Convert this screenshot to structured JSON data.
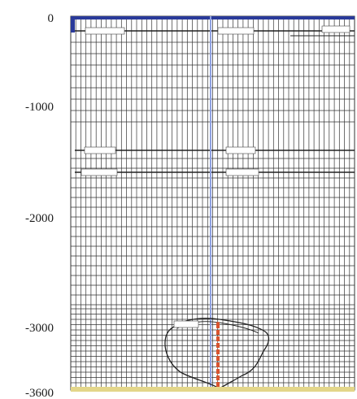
{
  "y_axis": {
    "unit_note": "",
    "ticks": [
      {
        "value": 0,
        "label": "0"
      },
      {
        "value": -1000,
        "label": "-1000"
      },
      {
        "value": -2000,
        "label": "-2000"
      },
      {
        "value": -3000,
        "label": "-3000"
      },
      {
        "value": -3600,
        "label": "-3600"
      }
    ],
    "range": [
      -3600,
      0
    ]
  },
  "layers": [
    {
      "depth": 0,
      "labels": [
        "",
        "",
        ""
      ]
    },
    {
      "depth": -1450,
      "labels": [
        "",
        ""
      ]
    },
    {
      "depth": -1620,
      "labels": [
        "",
        ""
      ]
    }
  ],
  "anomaly": {
    "label": "",
    "top_depth": -2930,
    "bottom_depth": -3580
  },
  "borehole": {
    "top_depth": -2980,
    "bottom_depth": -3580
  },
  "colors": {
    "grid": "#333333",
    "section_line": "#8ea0e0",
    "borehole": "#d9532f",
    "ground": "#e3d68a",
    "frame_top": "#2a3a9a",
    "text": "#1a1a1a"
  }
}
